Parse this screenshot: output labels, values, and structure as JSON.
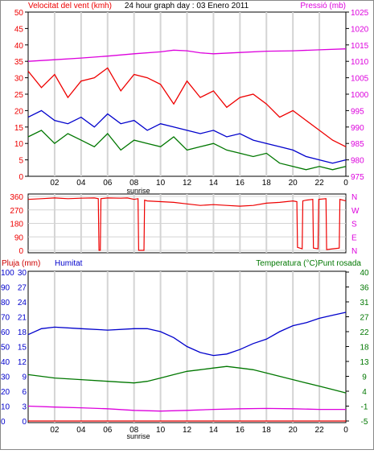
{
  "colors": {
    "red": "#ee0000",
    "blue": "#0000cc",
    "green": "#007700",
    "magenta": "#dd00dd",
    "grid": "#d4d4d4"
  },
  "chart_data": [
    {
      "type": "line",
      "title": "24 hour graph day : 03 Enero 2011",
      "ylabel_left": "Velocitat del vent (kmh)",
      "ylabel_right": "Pressió (mb)",
      "xlabel": "sunrise",
      "x_ticks": [
        "02",
        "04",
        "06",
        "08",
        "10",
        "12",
        "14",
        "16",
        "18",
        "20",
        "22",
        "0"
      ],
      "ylim_left": [
        0,
        50
      ],
      "y_ticks_left": [
        0,
        5,
        10,
        15,
        20,
        25,
        30,
        35,
        40,
        45,
        50
      ],
      "ylim_right": [
        975,
        1025
      ],
      "y_ticks_right": [
        975,
        980,
        985,
        990,
        995,
        1000,
        1005,
        1010,
        1015,
        1020,
        1025
      ],
      "grid": true,
      "series": [
        {
          "key": "gust",
          "color": "red",
          "axis": "left",
          "x": [
            0,
            1,
            2,
            3,
            4,
            5,
            6,
            7,
            8,
            9,
            10,
            11,
            12,
            13,
            14,
            15,
            16,
            17,
            18,
            19,
            20,
            21,
            22,
            23,
            24
          ],
          "y": [
            32,
            27,
            31,
            24,
            29,
            30,
            33,
            26,
            31,
            30,
            28,
            22,
            29,
            24,
            26,
            21,
            24,
            25,
            22,
            18,
            20,
            17,
            14,
            11,
            9
          ]
        },
        {
          "key": "avg",
          "color": "blue",
          "axis": "left",
          "x": [
            0,
            1,
            2,
            3,
            4,
            5,
            6,
            7,
            8,
            9,
            10,
            11,
            12,
            13,
            14,
            15,
            16,
            17,
            18,
            19,
            20,
            21,
            22,
            23,
            24
          ],
          "y": [
            18,
            20,
            17,
            16,
            18,
            15,
            19,
            16,
            17,
            14,
            16,
            15,
            14,
            13,
            14,
            12,
            13,
            11,
            10,
            9,
            8,
            6,
            5,
            4,
            5
          ]
        },
        {
          "key": "wind",
          "color": "green",
          "axis": "left",
          "x": [
            0,
            1,
            2,
            3,
            4,
            5,
            6,
            7,
            8,
            9,
            10,
            11,
            12,
            13,
            14,
            15,
            16,
            17,
            18,
            19,
            20,
            21,
            22,
            23,
            24
          ],
          "y": [
            12,
            14,
            10,
            13,
            11,
            9,
            13,
            8,
            11,
            10,
            9,
            12,
            8,
            9,
            10,
            8,
            7,
            6,
            7,
            4,
            3,
            2,
            3,
            2,
            3
          ]
        },
        {
          "key": "pressure",
          "color": "magenta",
          "axis": "right",
          "x": [
            0,
            2,
            4,
            6,
            8,
            10,
            11,
            12,
            13,
            14,
            16,
            18,
            20,
            22,
            24
          ],
          "y": [
            1010,
            1010.5,
            1011,
            1011.6,
            1012.3,
            1012.9,
            1013.4,
            1013.2,
            1012.6,
            1012.3,
            1012.7,
            1013.1,
            1013.2,
            1013.5,
            1013.8
          ]
        }
      ]
    },
    {
      "type": "line",
      "ylim": [
        0,
        360
      ],
      "y_ticks": [
        0,
        90,
        180,
        270,
        360
      ],
      "right_labels": [
        "N",
        "E",
        "S",
        "W",
        "N"
      ],
      "grid": true,
      "series": [
        {
          "key": "direction",
          "color": "red",
          "x": [
            0,
            1,
            2,
            3,
            4,
            5,
            5.3,
            5.35,
            5.45,
            5.5,
            6,
            7,
            7.5,
            8,
            8.3,
            8.35,
            8.75,
            8.8,
            9,
            10,
            11,
            12,
            13,
            14,
            15,
            16,
            17,
            18,
            19,
            20,
            20.3,
            20.35,
            20.7,
            20.75,
            21,
            21.5,
            21.55,
            21.9,
            21.95,
            22.5,
            22.55,
            23,
            23.5,
            23.55,
            24
          ],
          "y": [
            340,
            345,
            350,
            345,
            348,
            350,
            345,
            0,
            0,
            345,
            350,
            348,
            350,
            340,
            345,
            0,
            0,
            335,
            330,
            325,
            320,
            310,
            300,
            305,
            300,
            295,
            300,
            315,
            320,
            330,
            325,
            20,
            10,
            330,
            335,
            340,
            15,
            10,
            340,
            345,
            5,
            10,
            15,
            340,
            330
          ]
        }
      ]
    },
    {
      "type": "line",
      "ylabel_left_1": "Pluja (mm)",
      "ylabel_left_2": "Humitat",
      "ylabel_right": "Temperatura (°C)Punt rosada",
      "xlabel": "sunrise",
      "x_ticks": [
        "02",
        "04",
        "06",
        "08",
        "10",
        "12",
        "14",
        "16",
        "18",
        "20",
        "22",
        "0"
      ],
      "humidity_ticks": [
        0,
        10,
        20,
        30,
        40,
        50,
        60,
        70,
        80,
        90,
        100
      ],
      "rain_ticks": [
        0,
        3,
        6,
        9,
        12,
        15,
        18,
        21,
        24,
        27,
        30
      ],
      "temp_ticks": [
        -5,
        -1,
        4,
        9,
        13,
        18,
        22,
        27,
        31,
        36,
        40
      ],
      "ylim_humidity": [
        0,
        100
      ],
      "ylim_temp": [
        -5,
        40
      ],
      "grid": true,
      "series": [
        {
          "key": "humidity",
          "color": "blue",
          "axis": "humidity",
          "x": [
            0,
            1,
            2,
            4,
            6,
            8,
            9,
            10,
            11,
            12,
            13,
            14,
            15,
            16,
            17,
            18,
            19,
            20,
            21,
            22,
            23,
            24
          ],
          "y": [
            58,
            62,
            63,
            62,
            61,
            62,
            62,
            60,
            56,
            50,
            46,
            44,
            45,
            48,
            52,
            55,
            60,
            64,
            66,
            69,
            71,
            73
          ]
        },
        {
          "key": "temperature",
          "color": "green",
          "axis": "temp",
          "x": [
            0,
            2,
            4,
            6,
            8,
            9,
            10,
            11,
            12,
            13,
            14,
            15,
            16,
            17,
            18,
            19,
            20,
            21,
            22,
            23,
            24
          ],
          "y": [
            9,
            8,
            7.5,
            7,
            6.5,
            7,
            8,
            9,
            10,
            10.5,
            11,
            11.5,
            11,
            10.5,
            9.5,
            8.5,
            7.5,
            6.5,
            5.5,
            4.5,
            3.5
          ]
        },
        {
          "key": "dewpoint",
          "color": "magenta",
          "axis": "temp",
          "x": [
            0,
            2,
            4,
            6,
            8,
            10,
            12,
            14,
            16,
            18,
            20,
            22,
            24
          ],
          "y": [
            -0.5,
            -0.8,
            -1,
            -1.3,
            -1.8,
            -2,
            -1.8,
            -1.5,
            -1.3,
            -1.2,
            -1.3,
            -1.5,
            -1.5
          ]
        },
        {
          "key": "rain",
          "color": "red",
          "axis": "humidity",
          "x": [
            0,
            24
          ],
          "y": [
            0,
            0
          ]
        }
      ]
    }
  ]
}
